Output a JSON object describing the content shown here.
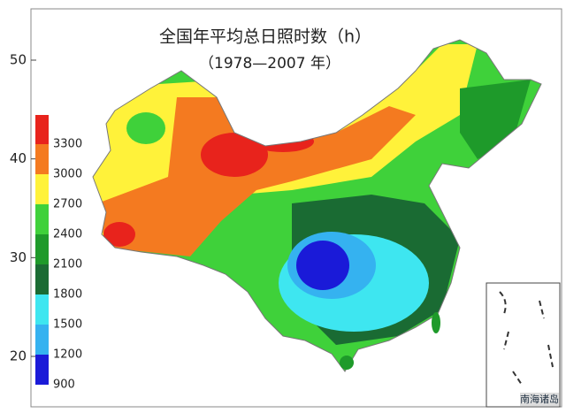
{
  "map": {
    "title": "全国年平均总日照时数（h）",
    "subtitle": "（1978—2007 年）",
    "lat_ticks": [
      50,
      40,
      30,
      20
    ],
    "legend": {
      "levels": [
        3300,
        3000,
        2700,
        2400,
        2100,
        1800,
        1500,
        1200,
        900
      ],
      "colors": [
        "#e8231c",
        "#f47a20",
        "#fff23a",
        "#3fd13a",
        "#1e9a2a",
        "#1a6b33",
        "#3ee6f0",
        "#35b2f0",
        "#1a1ad8"
      ]
    },
    "inset_label": "南海诸岛"
  }
}
